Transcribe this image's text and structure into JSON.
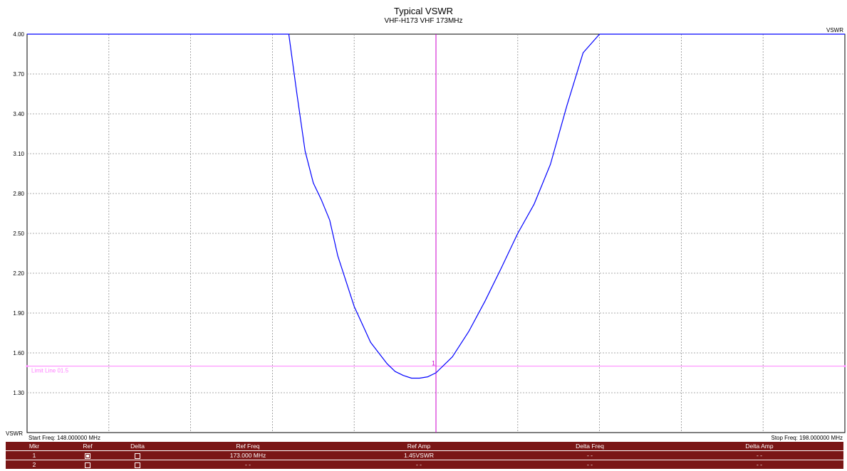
{
  "chart_data": {
    "type": "line",
    "title": "Typical VSWR",
    "subtitle": "VHF-H173  VHF 173MHz",
    "xlabel": "",
    "ylabel": "VSWR",
    "ylim": [
      1.0,
      4.0
    ],
    "xlim": [
      148,
      198
    ],
    "yticks": [
      "4.00",
      "3.70",
      "3.40",
      "3.10",
      "2.80",
      "2.50",
      "2.20",
      "1.90",
      "1.60",
      "1.30"
    ],
    "bottom_axis_label": "VSWR",
    "start_freq": "Start Freq: 148.000000 MHz",
    "stop_freq": "Stop Freq: 198.000000 MHz",
    "limit_line_label": "Limit Line 01.5",
    "limit_line_value": 1.5,
    "marker_x": 173,
    "marker_label": "1",
    "grid": true,
    "series": [
      {
        "x": [
          148,
          164.0,
          164.5,
          165.0,
          165.5,
          166.0,
          166.5,
          167.0,
          168.0,
          169.0,
          170.0,
          170.5,
          171.0,
          171.5,
          172.0,
          172.5,
          173.0,
          174.0,
          175.0,
          176.0,
          177.0,
          178.0,
          179.0,
          180.0,
          181.0,
          182.0,
          183.0,
          183.5,
          198
        ],
        "y": [
          4.0,
          4.0,
          3.55,
          3.12,
          2.88,
          2.75,
          2.6,
          2.33,
          1.95,
          1.68,
          1.52,
          1.46,
          1.43,
          1.41,
          1.41,
          1.42,
          1.45,
          1.57,
          1.76,
          1.99,
          2.24,
          2.5,
          2.72,
          3.02,
          3.46,
          3.86,
          4.0,
          4.0,
          4.0
        ],
        "color": "#0000ff"
      }
    ]
  },
  "marker_table": {
    "headers": [
      "Mkr",
      "Ref",
      "Delta",
      "Ref Freq",
      "Ref Amp",
      "Delta Freq",
      "Delta Amp"
    ],
    "rows": [
      {
        "mkr": "1",
        "ref_checked": true,
        "delta_checked": false,
        "ref_freq": "173.000 MHz",
        "ref_amp": "1.45VSWR",
        "delta_freq": "- -",
        "delta_amp": "- -"
      },
      {
        "mkr": "2",
        "ref_checked": false,
        "delta_checked": false,
        "ref_freq": "- -",
        "ref_amp": "- -",
        "delta_freq": "- -",
        "delta_amp": "- -"
      }
    ]
  },
  "colors": {
    "trace": "#0000ff",
    "limit_line": "#ff80ff",
    "marker_line": "#cc00cc",
    "table_bg": "#7a1616"
  }
}
